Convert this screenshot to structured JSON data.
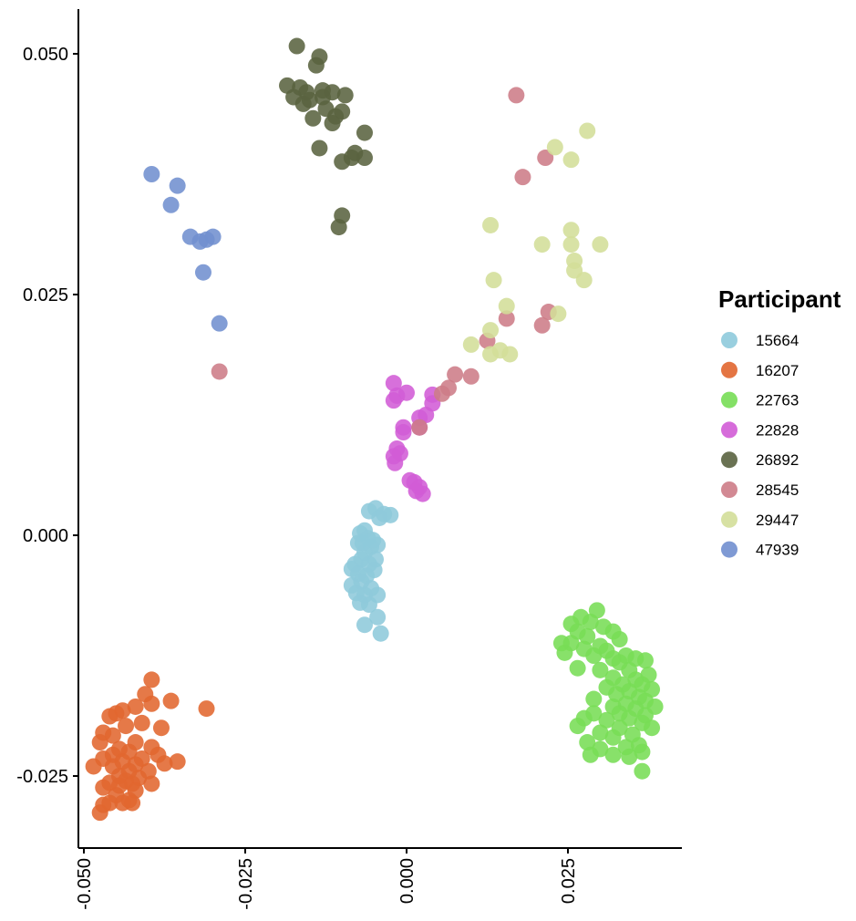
{
  "chart_data": {
    "type": "scatter",
    "title": "",
    "xlabel": "",
    "ylabel": "",
    "xlim": [
      -0.052,
      0.043
    ],
    "ylim": [
      -0.032,
      0.0545
    ],
    "x_ticks": [
      {
        "value": -0.05,
        "label": "-0.050"
      },
      {
        "value": -0.025,
        "label": "-0.025"
      },
      {
        "value": 0.0,
        "label": "0.000"
      },
      {
        "value": 0.025,
        "label": "0.025"
      }
    ],
    "y_ticks": [
      {
        "value": -0.025,
        "label": "-0.025"
      },
      {
        "value": 0.0,
        "label": "0.000"
      },
      {
        "value": 0.025,
        "label": "0.025"
      },
      {
        "value": 0.05,
        "label": "0.050"
      }
    ],
    "grid": false,
    "legend": {
      "title": "Participant",
      "placement": "right"
    },
    "series": [
      {
        "name": "15664",
        "color": "#8ECADB",
        "points": [
          [
            -0.0058,
            0.0025
          ],
          [
            -0.0048,
            0.0028
          ],
          [
            -0.0035,
            0.0022
          ],
          [
            -0.0025,
            0.0021
          ],
          [
            -0.0042,
            0.0018
          ],
          [
            -0.0065,
            0.0005
          ],
          [
            -0.0072,
            0.0002
          ],
          [
            -0.006,
            -0.0003
          ],
          [
            -0.0075,
            -0.0008
          ],
          [
            -0.0055,
            -0.0012
          ],
          [
            -0.0065,
            -0.0018
          ],
          [
            -0.0045,
            -0.001
          ],
          [
            -0.007,
            -0.0025
          ],
          [
            -0.0058,
            -0.003
          ],
          [
            -0.008,
            -0.003
          ],
          [
            -0.0048,
            -0.0025
          ],
          [
            -0.0085,
            -0.0035
          ],
          [
            -0.0075,
            -0.004
          ],
          [
            -0.0062,
            -0.0042
          ],
          [
            -0.005,
            -0.0036
          ],
          [
            -0.007,
            -0.0048
          ],
          [
            -0.0085,
            -0.0052
          ],
          [
            -0.0055,
            -0.0055
          ],
          [
            -0.0078,
            -0.006
          ],
          [
            -0.0065,
            -0.0062
          ],
          [
            -0.0045,
            -0.0062
          ],
          [
            -0.0072,
            -0.007
          ],
          [
            -0.0058,
            -0.0072
          ],
          [
            -0.0065,
            -0.0093
          ],
          [
            -0.0045,
            -0.0085
          ],
          [
            -0.004,
            -0.0102
          ],
          [
            -0.0068,
            -0.0008
          ],
          [
            -0.0052,
            -0.0005
          ]
        ]
      },
      {
        "name": "16207",
        "color": "#E1662F",
        "points": [
          [
            -0.0395,
            -0.015
          ],
          [
            -0.0405,
            -0.0165
          ],
          [
            -0.0395,
            -0.0175
          ],
          [
            -0.0365,
            -0.0172
          ],
          [
            -0.031,
            -0.018
          ],
          [
            -0.042,
            -0.0178
          ],
          [
            -0.044,
            -0.0182
          ],
          [
            -0.045,
            -0.0185
          ],
          [
            -0.046,
            -0.0188
          ],
          [
            -0.041,
            -0.0195
          ],
          [
            -0.0435,
            -0.0198
          ],
          [
            -0.038,
            -0.02
          ],
          [
            -0.047,
            -0.0205
          ],
          [
            -0.0455,
            -0.0208
          ],
          [
            -0.042,
            -0.0215
          ],
          [
            -0.0475,
            -0.0215
          ],
          [
            -0.0395,
            -0.022
          ],
          [
            -0.0445,
            -0.0222
          ],
          [
            -0.043,
            -0.0225
          ],
          [
            -0.0455,
            -0.0228
          ],
          [
            -0.0385,
            -0.0228
          ],
          [
            -0.041,
            -0.0232
          ],
          [
            -0.047,
            -0.0232
          ],
          [
            -0.044,
            -0.0235
          ],
          [
            -0.0355,
            -0.0235
          ],
          [
            -0.0375,
            -0.0237
          ],
          [
            -0.042,
            -0.0238
          ],
          [
            -0.0455,
            -0.024
          ],
          [
            -0.0485,
            -0.024
          ],
          [
            -0.043,
            -0.0245
          ],
          [
            -0.04,
            -0.0245
          ],
          [
            -0.0445,
            -0.025
          ],
          [
            -0.0415,
            -0.0252
          ],
          [
            -0.0435,
            -0.0255
          ],
          [
            -0.046,
            -0.0257
          ],
          [
            -0.0425,
            -0.0258
          ],
          [
            -0.0395,
            -0.0258
          ],
          [
            -0.0445,
            -0.026
          ],
          [
            -0.047,
            -0.0262
          ],
          [
            -0.042,
            -0.0265
          ],
          [
            -0.045,
            -0.027
          ],
          [
            -0.043,
            -0.0275
          ],
          [
            -0.046,
            -0.0278
          ],
          [
            -0.044,
            -0.0278
          ],
          [
            -0.047,
            -0.028
          ],
          [
            -0.0475,
            -0.0288
          ],
          [
            -0.0425,
            -0.0278
          ]
        ]
      },
      {
        "name": "22763",
        "color": "#77DD55",
        "points": [
          [
            0.0295,
            -0.0078
          ],
          [
            0.027,
            -0.0085
          ],
          [
            0.0255,
            -0.0092
          ],
          [
            0.0285,
            -0.009
          ],
          [
            0.0305,
            -0.0095
          ],
          [
            0.0265,
            -0.01
          ],
          [
            0.032,
            -0.01
          ],
          [
            0.028,
            -0.0105
          ],
          [
            0.024,
            -0.0112
          ],
          [
            0.03,
            -0.0115
          ],
          [
            0.033,
            -0.0108
          ],
          [
            0.0255,
            -0.0112
          ],
          [
            0.0275,
            -0.0118
          ],
          [
            0.031,
            -0.012
          ],
          [
            0.034,
            -0.0125
          ],
          [
            0.0245,
            -0.0122
          ],
          [
            0.029,
            -0.0125
          ],
          [
            0.032,
            -0.0128
          ],
          [
            0.0355,
            -0.0128
          ],
          [
            0.037,
            -0.013
          ],
          [
            0.033,
            -0.0132
          ],
          [
            0.0265,
            -0.0138
          ],
          [
            0.03,
            -0.014
          ],
          [
            0.0345,
            -0.014
          ],
          [
            0.0375,
            -0.0145
          ],
          [
            0.032,
            -0.0148
          ],
          [
            0.0355,
            -0.015
          ],
          [
            0.0335,
            -0.0155
          ],
          [
            0.0365,
            -0.0155
          ],
          [
            0.031,
            -0.0158
          ],
          [
            0.038,
            -0.016
          ],
          [
            0.0345,
            -0.0162
          ],
          [
            0.0325,
            -0.0165
          ],
          [
            0.036,
            -0.0168
          ],
          [
            0.029,
            -0.017
          ],
          [
            0.037,
            -0.0172
          ],
          [
            0.034,
            -0.0175
          ],
          [
            0.032,
            -0.0178
          ],
          [
            0.0385,
            -0.0178
          ],
          [
            0.0355,
            -0.018
          ],
          [
            0.029,
            -0.0185
          ],
          [
            0.033,
            -0.0185
          ],
          [
            0.037,
            -0.0187
          ],
          [
            0.0275,
            -0.019
          ],
          [
            0.0345,
            -0.019
          ],
          [
            0.031,
            -0.0192
          ],
          [
            0.0365,
            -0.0195
          ],
          [
            0.0265,
            -0.0198
          ],
          [
            0.033,
            -0.02
          ],
          [
            0.038,
            -0.02
          ],
          [
            0.03,
            -0.0205
          ],
          [
            0.035,
            -0.0207
          ],
          [
            0.032,
            -0.021
          ],
          [
            0.028,
            -0.0215
          ],
          [
            0.036,
            -0.0218
          ],
          [
            0.034,
            -0.022
          ],
          [
            0.03,
            -0.0222
          ],
          [
            0.0365,
            -0.0225
          ],
          [
            0.032,
            -0.0228
          ],
          [
            0.0285,
            -0.0228
          ],
          [
            0.0345,
            -0.023
          ],
          [
            0.0365,
            -0.0245
          ]
        ]
      },
      {
        "name": "22828",
        "color": "#D15CD6",
        "points": [
          [
            -0.002,
            0.0158
          ],
          [
            0.0,
            0.0148
          ],
          [
            -0.0015,
            0.0145
          ],
          [
            0.004,
            0.0146
          ],
          [
            -0.002,
            0.014
          ],
          [
            0.003,
            0.0125
          ],
          [
            0.002,
            0.0122
          ],
          [
            -0.0005,
            0.0112
          ],
          [
            0.004,
            0.0137
          ],
          [
            0.002,
            0.0112
          ],
          [
            -0.0005,
            0.0107
          ],
          [
            -0.0015,
            0.009
          ],
          [
            -0.001,
            0.0085
          ],
          [
            -0.002,
            0.0082
          ],
          [
            -0.0018,
            0.0075
          ],
          [
            0.0005,
            0.0057
          ],
          [
            0.0012,
            0.0055
          ],
          [
            0.002,
            0.005
          ],
          [
            0.0015,
            0.0046
          ],
          [
            0.0025,
            0.0043
          ]
        ]
      },
      {
        "name": "26892",
        "color": "#5A6340",
        "points": [
          [
            -0.017,
            0.0508
          ],
          [
            -0.0135,
            0.0497
          ],
          [
            -0.014,
            0.0488
          ],
          [
            -0.0185,
            0.0467
          ],
          [
            -0.0165,
            0.0465
          ],
          [
            -0.0155,
            0.046
          ],
          [
            -0.013,
            0.0462
          ],
          [
            -0.0115,
            0.046
          ],
          [
            -0.0175,
            0.0455
          ],
          [
            -0.015,
            0.0452
          ],
          [
            -0.013,
            0.0455
          ],
          [
            -0.0095,
            0.0457
          ],
          [
            -0.016,
            0.0448
          ],
          [
            -0.0125,
            0.0443
          ],
          [
            -0.01,
            0.044
          ],
          [
            -0.011,
            0.0435
          ],
          [
            -0.0145,
            0.0433
          ],
          [
            -0.0115,
            0.0428
          ],
          [
            -0.0065,
            0.0418
          ],
          [
            -0.0135,
            0.0402
          ],
          [
            -0.008,
            0.0397
          ],
          [
            -0.0085,
            0.0392
          ],
          [
            -0.0065,
            0.0392
          ],
          [
            -0.01,
            0.0388
          ],
          [
            -0.01,
            0.0332
          ],
          [
            -0.0105,
            0.032
          ]
        ]
      },
      {
        "name": "28545",
        "color": "#CD7C87",
        "points": [
          [
            0.017,
            0.0457
          ],
          [
            0.018,
            0.0372
          ],
          [
            0.0215,
            0.0392
          ],
          [
            0.022,
            0.0232
          ],
          [
            0.0155,
            0.0225
          ],
          [
            0.021,
            0.0218
          ],
          [
            0.0125,
            0.0202
          ],
          [
            0.01,
            0.0165
          ],
          [
            0.0075,
            0.0167
          ],
          [
            0.0065,
            0.0153
          ],
          [
            0.0055,
            0.0147
          ],
          [
            0.002,
            0.0112
          ],
          [
            -0.029,
            0.017
          ]
        ]
      },
      {
        "name": "29447",
        "color": "#D3DE99",
        "points": [
          [
            0.028,
            0.042
          ],
          [
            0.023,
            0.0403
          ],
          [
            0.0255,
            0.039
          ],
          [
            0.013,
            0.0322
          ],
          [
            0.0255,
            0.0317
          ],
          [
            0.021,
            0.0302
          ],
          [
            0.03,
            0.0302
          ],
          [
            0.0255,
            0.0302
          ],
          [
            0.026,
            0.0285
          ],
          [
            0.026,
            0.0275
          ],
          [
            0.0135,
            0.0265
          ],
          [
            0.0275,
            0.0265
          ],
          [
            0.0155,
            0.0238
          ],
          [
            0.0235,
            0.023
          ],
          [
            0.013,
            0.0213
          ],
          [
            0.01,
            0.0198
          ],
          [
            0.0145,
            0.0192
          ],
          [
            0.013,
            0.0188
          ],
          [
            0.016,
            0.0188
          ]
        ]
      },
      {
        "name": "47939",
        "color": "#718FCF",
        "points": [
          [
            -0.0395,
            0.0375
          ],
          [
            -0.0355,
            0.0363
          ],
          [
            -0.0365,
            0.0343
          ],
          [
            -0.0335,
            0.031
          ],
          [
            -0.03,
            0.031
          ],
          [
            -0.031,
            0.0307
          ],
          [
            -0.032,
            0.0305
          ],
          [
            -0.0315,
            0.0273
          ],
          [
            -0.029,
            0.022
          ]
        ]
      }
    ]
  }
}
